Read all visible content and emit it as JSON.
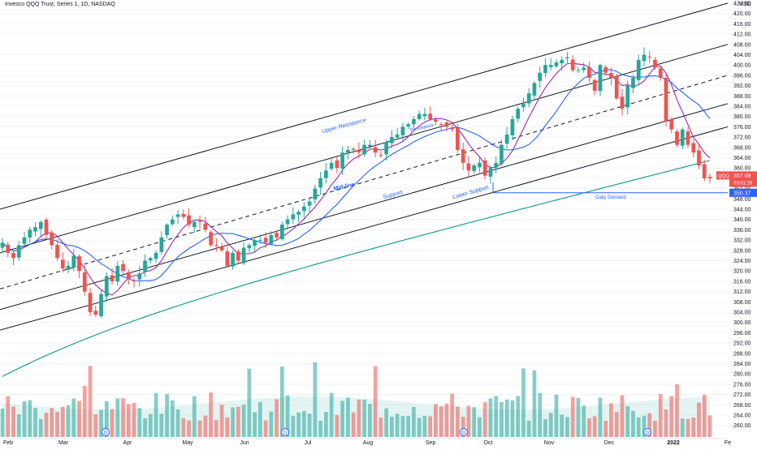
{
  "header": {
    "title": "Invesco QQQ Trust, Series 1, 1D, NASDAQ"
  },
  "colors": {
    "up": "#26a69a",
    "down": "#ef5350",
    "sma_fast": "#9c27b0",
    "sma_mid": "#2962ff",
    "sma_slow": "#089981",
    "channel": "#131722",
    "label_blue": "#2962ff",
    "demand_line": "#2962ff"
  },
  "chart_data": {
    "type": "candlestick",
    "symbol": "QQQ",
    "currency_label": "USD",
    "yaxis": {
      "ticks": [
        260,
        264,
        268,
        272,
        276,
        280,
        284,
        288,
        292,
        296,
        300,
        304,
        308,
        312,
        316,
        320,
        324,
        328,
        332,
        336,
        340,
        344,
        348,
        352,
        356,
        360,
        364,
        368,
        372,
        376,
        380,
        384,
        388,
        392,
        396,
        400,
        404,
        408,
        412,
        416,
        420,
        424
      ],
      "ylim": [
        258,
        424
      ]
    },
    "xaxis": {
      "labels": [
        "Feb",
        "Mar",
        "Apr",
        "May",
        "Jun",
        "Jul",
        "Aug",
        "Sep",
        "Oct",
        "Nov",
        "Dec",
        "2022",
        "Fe"
      ],
      "bold_label": "2022"
    },
    "price_label": {
      "symbol": "QQQ",
      "value": "357.09",
      "countdown": "03:01:26"
    },
    "demand_label": {
      "value": "350.37"
    },
    "annotations": [
      "Upper Resistance",
      "Resistance",
      "Mid-line",
      "Support",
      "Lower Support",
      "Daily Demand"
    ],
    "event_markers": [
      "D",
      "D",
      "D",
      "D"
    ],
    "levels": {
      "daily_demand": 350.37
    },
    "channels": [
      {
        "name": "upper",
        "from": [
          "Feb",
          344
        ],
        "to": [
          "Fe",
          424
        ]
      },
      {
        "name": "upper-mid",
        "from": [
          "Feb",
          327
        ],
        "to": [
          "Fe",
          408
        ]
      },
      {
        "name": "mid",
        "from": [
          "Feb",
          313
        ],
        "to": [
          "Fe",
          396
        ]
      },
      {
        "name": "lower-mid",
        "from": [
          "Feb",
          305
        ],
        "to": [
          "Fe",
          385
        ]
      },
      {
        "name": "lower",
        "from": [
          "Feb",
          297
        ],
        "to": [
          "Fe",
          376
        ]
      }
    ],
    "candles_close": [
      331,
      327,
      325,
      330,
      333,
      336,
      337,
      339,
      334,
      330,
      325,
      321,
      322,
      326,
      320,
      312,
      304,
      303,
      311,
      318,
      316,
      322,
      320,
      317,
      316,
      319,
      324,
      325,
      327,
      333,
      338,
      340,
      342,
      341,
      338,
      339,
      339,
      336,
      330,
      330,
      328,
      322,
      327,
      324,
      329,
      330,
      332,
      332,
      331,
      334,
      333,
      338,
      340,
      342,
      343,
      345,
      347,
      352,
      356,
      359,
      362,
      360,
      366,
      367,
      367,
      366,
      369,
      369,
      366,
      365,
      370,
      372,
      373,
      376,
      377,
      379,
      381,
      381,
      379,
      378,
      377,
      376,
      375,
      367,
      362,
      359,
      361,
      362,
      357,
      360,
      362,
      369,
      373,
      379,
      383,
      385,
      389,
      393,
      397,
      400,
      400,
      401,
      402,
      403,
      398,
      398,
      399,
      395,
      390,
      400,
      397,
      395,
      387,
      383,
      392,
      395,
      402,
      404,
      403,
      399,
      395,
      378,
      375,
      369,
      375,
      369,
      366,
      361,
      356,
      356
    ]
  }
}
